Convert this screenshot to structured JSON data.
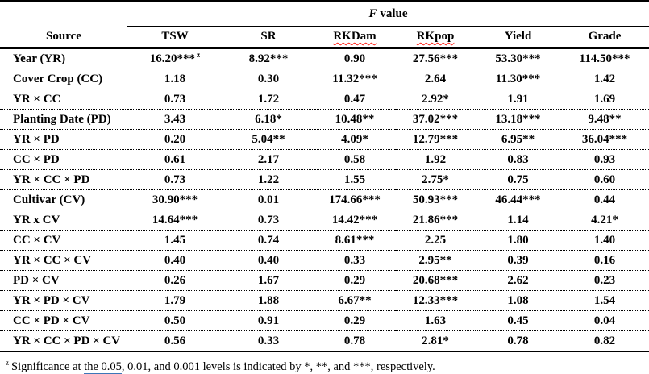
{
  "colors": {
    "text": "#000000",
    "background": "#ffffff",
    "spellcheck_red": "#ff2016",
    "grammar_blue": "#3d76b8",
    "rule_black": "#000000"
  },
  "table": {
    "spanner": {
      "italic_part": "F",
      "normal_part": " value"
    },
    "columns": [
      {
        "label": "Source",
        "misspelled": false
      },
      {
        "label": "TSW",
        "misspelled": false
      },
      {
        "label": "SR",
        "misspelled": false
      },
      {
        "label": "RKDam",
        "misspelled": true
      },
      {
        "label": "RKpop",
        "misspelled": true
      },
      {
        "label": "Yield",
        "misspelled": false
      },
      {
        "label": "Grade",
        "misspelled": false
      }
    ],
    "rows": [
      {
        "label": "Year (YR)",
        "values": [
          "16.20***",
          "8.92***",
          "0.90",
          "27.56***",
          "53.30***",
          "114.50***"
        ],
        "sup": "z"
      },
      {
        "label": "Cover Crop (CC)",
        "values": [
          "1.18",
          "0.30",
          "11.32***",
          "2.64",
          "11.30***",
          "1.42"
        ]
      },
      {
        "label": "YR × CC",
        "values": [
          "0.73",
          "1.72",
          "0.47",
          "2.92*",
          "1.91",
          "1.69"
        ]
      },
      {
        "label": "Planting Date (PD)",
        "values": [
          "3.43",
          "6.18*",
          "10.48**",
          "37.02***",
          "13.18***",
          "9.48**"
        ]
      },
      {
        "label": "YR × PD",
        "values": [
          "0.20",
          "5.04**",
          "4.09*",
          "12.79***",
          "6.95**",
          "36.04***"
        ]
      },
      {
        "label": "CC × PD",
        "values": [
          "0.61",
          "2.17",
          "0.58",
          "1.92",
          "0.83",
          "0.93"
        ]
      },
      {
        "label": "YR × CC × PD",
        "values": [
          "0.73",
          "1.22",
          "1.55",
          "2.75*",
          "0.75",
          "0.60"
        ]
      },
      {
        "label": "Cultivar (CV)",
        "values": [
          "30.90***",
          "0.01",
          "174.66***",
          "50.93***",
          "46.44***",
          "0.44"
        ]
      },
      {
        "label": "YR x CV",
        "values": [
          "14.64***",
          "0.73",
          "14.42***",
          "21.86***",
          "1.14",
          "4.21*"
        ]
      },
      {
        "label": "CC × CV",
        "values": [
          "1.45",
          "0.74",
          "8.61***",
          "2.25",
          "1.80",
          "1.40"
        ]
      },
      {
        "label": "YR × CC × CV",
        "values": [
          "0.40",
          "0.40",
          "0.33",
          "2.95**",
          "0.39",
          "0.16"
        ]
      },
      {
        "label": "PD × CV",
        "values": [
          "0.26",
          "1.67",
          "0.29",
          "20.68***",
          "2.62",
          "0.23"
        ]
      },
      {
        "label": "YR × PD × CV",
        "values": [
          "1.79",
          "1.88",
          "6.67**",
          "12.33***",
          "1.08",
          "1.54"
        ]
      },
      {
        "label": "CC × PD × CV",
        "values": [
          "0.50",
          "0.91",
          "0.29",
          "1.63",
          "0.45",
          "0.04"
        ]
      },
      {
        "label": "YR × CC × PD × CV",
        "values": [
          "0.56",
          "0.33",
          "0.78",
          "2.81*",
          "0.78",
          "0.82"
        ]
      }
    ]
  },
  "footnote": {
    "sup": "z",
    "pre": "Significance at ",
    "underlined": "the 0.05",
    "post": ", 0.01, and 0.001 levels is indicated by *, **, and ***, respectively."
  }
}
